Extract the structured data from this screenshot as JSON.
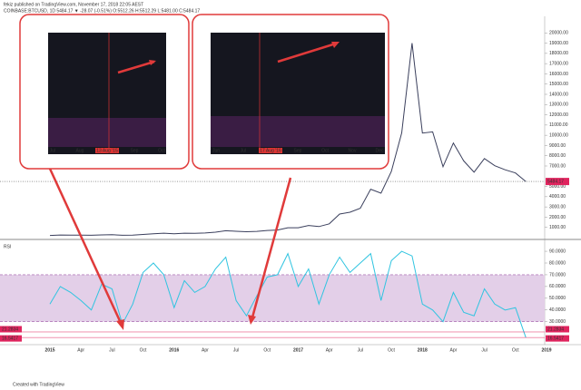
{
  "header": {
    "publisher": "fekiz published on TradingView.com, November 17, 2018 22:05 AEST",
    "symbol": "COINBASE:BTCUSD, 1D 5484.17 ▼ -28.07 (-0.51%) O:5512.26 H:5512.29 L:5481.00 C:5484.17"
  },
  "footer": "Created with TradingView",
  "insets": [
    {
      "labels": [
        "Jul",
        "Aug",
        "13 Aug '15",
        "Sep",
        "Oct"
      ]
    },
    {
      "labels": [
        "Jun",
        "Jul",
        "17 Aug '16",
        "Sep",
        "Oct",
        "Nov",
        "Dec"
      ]
    }
  ],
  "chart_data": [
    {
      "type": "line",
      "color": "#3a3f5c",
      "ylim": [
        0,
        21000
      ],
      "yticks": [
        {
          "value": 1000,
          "label": "1000.00"
        },
        {
          "value": 2000,
          "label": "2000.00"
        },
        {
          "value": 3000,
          "label": "3000.00"
        },
        {
          "value": 4000,
          "label": "4000.00"
        },
        {
          "value": 5000,
          "label": "5000.00"
        },
        {
          "value": 7000,
          "label": "7000.00"
        },
        {
          "value": 8000,
          "label": "8000.00"
        },
        {
          "value": 9000,
          "label": "9000.00"
        },
        {
          "value": 10000,
          "label": "10000.00"
        },
        {
          "value": 11000,
          "label": "11000.00"
        },
        {
          "value": 12000,
          "label": "12000.00"
        },
        {
          "value": 13000,
          "label": "13000.00"
        },
        {
          "value": 14000,
          "label": "14000.00"
        },
        {
          "value": 15000,
          "label": "15000.00"
        },
        {
          "value": 16000,
          "label": "16000.00"
        },
        {
          "value": 17000,
          "label": "17000.00"
        },
        {
          "value": 18000,
          "label": "18000.00"
        },
        {
          "value": 19000,
          "label": "19000.00"
        },
        {
          "value": 20000,
          "label": "20000.00"
        }
      ],
      "last_price": 5484.17,
      "values": [
        217,
        254,
        244,
        236,
        230,
        263,
        284,
        230,
        236,
        314,
        377,
        430,
        368,
        437,
        416,
        448,
        531,
        673,
        624,
        575,
        609,
        701,
        742,
        964,
        970,
        1190,
        1080,
        1348,
        2300,
        2480,
        2875,
        4735,
        4340,
        6470,
        10230,
        19000,
        10220,
        10330,
        6930,
        9240,
        7500,
        6400,
        7730,
        7030,
        6630,
        6320,
        5484.17,
        null,
        null
      ]
    },
    {
      "type": "line",
      "title": "RSI",
      "color": "#2fc4e0",
      "band": [
        30,
        70
      ],
      "band_color": "#e3cfe8",
      "ylim": [
        12,
        97
      ],
      "yticks": [
        {
          "value": 30,
          "label": "30.0000"
        },
        {
          "value": 40,
          "label": "40.0000"
        },
        {
          "value": 50,
          "label": "50.0000"
        },
        {
          "value": 60,
          "label": "60.0000"
        },
        {
          "value": 70,
          "label": "70.0000"
        },
        {
          "value": 80,
          "label": "80.0000"
        },
        {
          "value": 90,
          "label": "90.0000"
        }
      ],
      "markers": [
        21.2834,
        16.5417
      ],
      "categories": [
        "2015",
        null,
        null,
        "Apr",
        null,
        null,
        "Jul",
        null,
        null,
        "Oct",
        null,
        null,
        "2016",
        null,
        null,
        "Apr",
        null,
        null,
        "Jul",
        null,
        null,
        "Oct",
        null,
        null,
        "2017",
        null,
        null,
        "Apr",
        null,
        null,
        "Jul",
        null,
        null,
        "Oct",
        null,
        null,
        "2018",
        null,
        null,
        "Apr",
        null,
        null,
        "Jul",
        null,
        null,
        "Oct",
        null,
        null,
        "2019"
      ],
      "values": [
        45,
        60,
        55,
        48,
        40,
        62,
        58,
        28,
        45,
        72,
        80,
        70,
        42,
        65,
        55,
        60,
        75,
        85,
        48,
        35,
        52,
        68,
        70,
        88,
        60,
        75,
        45,
        70,
        85,
        72,
        80,
        88,
        48,
        82,
        90,
        86,
        45,
        40,
        30,
        55,
        38,
        35,
        58,
        45,
        40,
        42,
        16.5417,
        null,
        null
      ]
    }
  ]
}
